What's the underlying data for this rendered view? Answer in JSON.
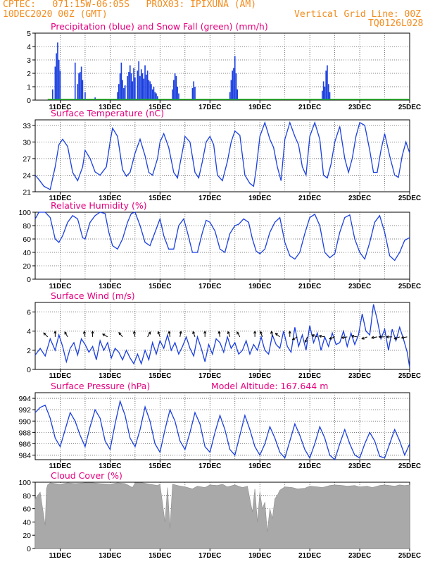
{
  "header": {
    "line1": "CPTEC:   071:15W-06:05S   PROX03: IPIXUNA (AM)",
    "line2": "10DEC2020 00Z (GMT)",
    "right1": "Vertical Grid Line: 00Z",
    "right2": "TQ0126L028"
  },
  "x_ticks": [
    "11DEC",
    "13DEC",
    "15DEC",
    "17DEC",
    "19DEC",
    "21DEC",
    "23DEC",
    "25DEC"
  ],
  "colors": {
    "line": "#1a3fe0",
    "bar": "#1a3fe0",
    "snow": "#1bb21b",
    "cloud": "#a9a9a9",
    "title": "#e6007e",
    "header": "#f28c1e"
  },
  "chart_data": [
    {
      "type": "bar",
      "title": "Precipitation (blue) and Snow Fall (green) (mm/h)",
      "ylim": [
        0,
        5
      ],
      "yticks": [
        "0",
        "1",
        "2",
        "3",
        "4",
        "5"
      ],
      "series": [
        {
          "name": "Precipitation",
          "x_days": [
            10.7,
            10.8,
            10.85,
            10.9,
            10.95,
            11.0,
            11.6,
            11.7,
            11.75,
            11.8,
            11.85,
            11.9,
            12.0,
            12.4,
            13.3,
            13.35,
            13.4,
            13.45,
            13.5,
            13.55,
            13.6,
            13.7,
            13.75,
            13.8,
            13.85,
            13.9,
            13.95,
            14.0,
            14.1,
            14.15,
            14.2,
            14.25,
            14.3,
            14.35,
            14.4,
            14.45,
            14.5,
            14.55,
            14.6,
            14.65,
            14.7,
            14.75,
            14.8,
            14.85,
            14.9,
            15.5,
            15.55,
            15.6,
            15.65,
            15.7,
            15.75,
            16.3,
            16.35,
            16.4,
            17.8,
            17.85,
            17.9,
            17.95,
            18.0,
            18.05,
            18.1,
            21.5,
            21.55,
            21.6,
            21.65,
            21.7,
            21.75,
            21.8
          ],
          "values": [
            0.8,
            2.5,
            3.5,
            4.3,
            3.0,
            2.2,
            2.8,
            1.2,
            2.0,
            2.1,
            2.5,
            1.5,
            0.6,
            0.2,
            0.6,
            1.2,
            2.0,
            2.8,
            1.5,
            0.9,
            1.1,
            1.8,
            2.1,
            2.6,
            2.0,
            1.4,
            2.4,
            1.7,
            2.2,
            2.9,
            1.8,
            2.3,
            2.0,
            1.6,
            2.6,
            1.9,
            2.2,
            1.5,
            1.4,
            1.2,
            0.8,
            1.0,
            0.6,
            0.5,
            0.3,
            0.8,
            1.5,
            2.0,
            1.8,
            1.0,
            0.5,
            0.9,
            1.4,
            1.0,
            0.6,
            1.5,
            2.2,
            2.4,
            3.3,
            2.0,
            0.8,
            0.7,
            1.4,
            1.0,
            2.2,
            2.6,
            1.2,
            0.6
          ]
        },
        {
          "name": "Snow Fall",
          "x_days": [
            10.5,
            25.0
          ],
          "values": [
            0,
            0
          ]
        }
      ]
    },
    {
      "type": "line",
      "title": "Surface Temperature (nC)",
      "ylim": [
        21,
        34
      ],
      "yticks": [
        "21",
        "24",
        "27",
        "30",
        "33"
      ],
      "x_days": [
        10.0,
        10.15,
        10.35,
        10.6,
        10.8,
        10.95,
        11.1,
        11.3,
        11.5,
        11.7,
        11.9,
        12.0,
        12.2,
        12.4,
        12.6,
        12.85,
        13.0,
        13.1,
        13.3,
        13.5,
        13.65,
        13.8,
        14.0,
        14.2,
        14.4,
        14.55,
        14.7,
        14.9,
        15.0,
        15.15,
        15.35,
        15.55,
        15.7,
        15.8,
        15.95,
        16.0,
        16.2,
        16.4,
        16.55,
        16.7,
        16.85,
        17.0,
        17.15,
        17.3,
        17.5,
        17.7,
        17.85,
        18.0,
        18.2,
        18.4,
        18.6,
        18.75,
        18.85,
        19.0,
        19.2,
        19.4,
        19.55,
        19.7,
        19.85,
        20.0,
        20.2,
        20.4,
        20.55,
        20.7,
        20.85,
        21.0,
        21.2,
        21.4,
        21.55,
        21.7,
        21.85,
        22.0,
        22.2,
        22.4,
        22.55,
        22.7,
        22.85,
        23.0,
        23.2,
        23.4,
        23.55,
        23.7,
        23.85,
        24.0,
        24.2,
        24.4,
        24.55,
        24.7,
        24.85,
        25.0
      ],
      "values": [
        24,
        23.2,
        22,
        21.4,
        25.5,
        29.5,
        30.5,
        29.2,
        24.5,
        23,
        25.5,
        28.5,
        27,
        24.6,
        24,
        25.5,
        30,
        32.5,
        31,
        25,
        23.8,
        24.5,
        28,
        30.5,
        27.5,
        24.5,
        24,
        27,
        30,
        31.5,
        29,
        24.5,
        23.5,
        26,
        29.5,
        31,
        30,
        24.5,
        23.5,
        26.5,
        30,
        31,
        29.5,
        24,
        23,
        26.5,
        30,
        32,
        31.2,
        24,
        22.5,
        22,
        25,
        31,
        33.5,
        30.5,
        29,
        25.5,
        23,
        30.5,
        33.5,
        31,
        29.5,
        25.5,
        24,
        31,
        33.5,
        30.5,
        24,
        23.5,
        26,
        30,
        32.8,
        27,
        24.5,
        27,
        31,
        33.5,
        33,
        28.5,
        24.5,
        24.5,
        28.5,
        31.5,
        27.5,
        24,
        23.6,
        27.5,
        30,
        28
      ]
    },
    {
      "type": "line",
      "title": "Relative Humidity (%)",
      "ylim": [
        0,
        100
      ],
      "yticks": [
        "0",
        "20",
        "40",
        "60",
        "80",
        "100"
      ],
      "x_days": [
        10.0,
        10.15,
        10.4,
        10.6,
        10.8,
        10.95,
        11.1,
        11.3,
        11.5,
        11.7,
        11.9,
        12.0,
        12.2,
        12.4,
        12.6,
        12.8,
        12.95,
        13.1,
        13.3,
        13.5,
        13.7,
        13.85,
        14.0,
        14.2,
        14.4,
        14.6,
        14.8,
        15.0,
        15.15,
        15.35,
        15.55,
        15.75,
        15.95,
        16.1,
        16.3,
        16.5,
        16.7,
        16.85,
        17.0,
        17.2,
        17.4,
        17.6,
        17.8,
        18.0,
        18.15,
        18.35,
        18.55,
        18.7,
        18.85,
        19.0,
        19.2,
        19.4,
        19.6,
        19.8,
        20.0,
        20.2,
        20.4,
        20.6,
        20.8,
        21.0,
        21.2,
        21.4,
        21.6,
        21.8,
        22.0,
        22.2,
        22.4,
        22.6,
        22.8,
        23.0,
        23.2,
        23.4,
        23.6,
        23.8,
        24.0,
        24.2,
        24.4,
        24.6,
        24.8,
        25.0
      ],
      "values": [
        90,
        100,
        100,
        92,
        60,
        55,
        65,
        85,
        95,
        90,
        62,
        60,
        85,
        95,
        100,
        98,
        70,
        50,
        45,
        60,
        85,
        98,
        100,
        80,
        55,
        50,
        70,
        90,
        65,
        45,
        45,
        80,
        90,
        70,
        40,
        40,
        70,
        88,
        85,
        72,
        45,
        40,
        68,
        80,
        82,
        90,
        85,
        60,
        42,
        38,
        45,
        70,
        85,
        92,
        55,
        35,
        30,
        40,
        68,
        92,
        97,
        80,
        40,
        32,
        38,
        70,
        92,
        96,
        60,
        40,
        30,
        55,
        85,
        95,
        70,
        35,
        28,
        40,
        58,
        62
      ]
    },
    {
      "type": "line",
      "title": "Surface Wind (m/s)",
      "ylim": [
        0,
        7
      ],
      "yticks": [
        "0",
        "2",
        "4",
        "6"
      ],
      "x_days": [
        10.0,
        10.2,
        10.4,
        10.6,
        10.8,
        10.95,
        11.1,
        11.25,
        11.4,
        11.55,
        11.7,
        11.85,
        12.0,
        12.15,
        12.3,
        12.45,
        12.6,
        12.75,
        12.9,
        13.05,
        13.2,
        13.35,
        13.5,
        13.65,
        13.8,
        13.95,
        14.1,
        14.25,
        14.4,
        14.55,
        14.7,
        14.85,
        15.0,
        15.15,
        15.3,
        15.45,
        15.6,
        15.75,
        15.9,
        16.05,
        16.2,
        16.35,
        16.5,
        16.65,
        16.8,
        16.95,
        17.1,
        17.25,
        17.4,
        17.55,
        17.7,
        17.85,
        18.0,
        18.15,
        18.3,
        18.45,
        18.6,
        18.75,
        18.9,
        19.05,
        19.2,
        19.35,
        19.5,
        19.65,
        19.8,
        19.95,
        20.1,
        20.25,
        20.4,
        20.55,
        20.7,
        20.85,
        21.0,
        21.15,
        21.3,
        21.45,
        21.6,
        21.75,
        21.9,
        22.05,
        22.2,
        22.35,
        22.5,
        22.65,
        22.8,
        22.95,
        23.1,
        23.25,
        23.4,
        23.55,
        23.7,
        23.85,
        24.0,
        24.15,
        24.3,
        24.45,
        24.6,
        24.75,
        24.9,
        25.0
      ],
      "values": [
        1.5,
        2.2,
        1.4,
        3.2,
        2.0,
        3.6,
        2.4,
        0.8,
        2.2,
        2.8,
        1.5,
        3.2,
        2.6,
        1.8,
        2.4,
        1.0,
        3.0,
        2.0,
        2.8,
        1.2,
        2.2,
        1.8,
        1.0,
        2.0,
        1.2,
        0.6,
        1.6,
        0.6,
        2.0,
        1.0,
        2.8,
        1.6,
        3.0,
        2.2,
        3.6,
        2.0,
        2.8,
        1.6,
        2.4,
        3.4,
        2.2,
        1.4,
        3.4,
        2.2,
        0.8,
        2.6,
        1.6,
        3.2,
        2.8,
        1.8,
        3.4,
        2.2,
        2.8,
        1.6,
        2.0,
        3.0,
        1.6,
        2.6,
        2.0,
        3.4,
        2.0,
        1.6,
        3.6,
        2.6,
        2.2,
        4.0,
        2.4,
        1.8,
        4.4,
        2.4,
        3.6,
        2.0,
        4.6,
        2.8,
        3.8,
        2.0,
        3.4,
        2.4,
        3.8,
        2.6,
        2.8,
        4.0,
        2.4,
        3.8,
        2.6,
        3.6,
        5.8,
        4.0,
        3.6,
        6.8,
        5.2,
        3.2,
        4.2,
        2.0,
        4.2,
        3.0,
        4.4,
        3.2,
        1.8,
        0.2
      ],
      "arrows_x_days": [
        10.5,
        10.8,
        11.3,
        12.0,
        12.3,
        12.9,
        13.5,
        14.0,
        14.5,
        15.0,
        15.4,
        15.8,
        16.4,
        16.8,
        17.4,
        17.8,
        18.2,
        18.8,
        19.1,
        19.5,
        19.8,
        20.2,
        20.5,
        20.9,
        21.3,
        21.6,
        22.0,
        22.5,
        22.9,
        23.3,
        23.7,
        24.0,
        24.3,
        24.6,
        24.9
      ],
      "arrows_deg": [
        135,
        90,
        120,
        100,
        90,
        150,
        130,
        100,
        60,
        110,
        100,
        80,
        110,
        90,
        100,
        110,
        120,
        90,
        110,
        100,
        140,
        90,
        210,
        250,
        160,
        170,
        200,
        190,
        170,
        200,
        190,
        180,
        180,
        200,
        190
      ]
    },
    {
      "type": "line",
      "title": "Surface Pressure (hPa)",
      "model_altitude": "Model Altitude: 167.644 m",
      "ylim": [
        983.2,
        995
      ],
      "yticks": [
        "984",
        "986",
        "988",
        "990",
        "992",
        "994"
      ],
      "x_days": [
        10.0,
        10.2,
        10.4,
        10.6,
        10.8,
        11.0,
        11.2,
        11.4,
        11.6,
        11.8,
        12.0,
        12.2,
        12.4,
        12.6,
        12.8,
        13.0,
        13.2,
        13.4,
        13.6,
        13.8,
        14.0,
        14.2,
        14.4,
        14.6,
        14.8,
        15.0,
        15.2,
        15.4,
        15.6,
        15.8,
        16.0,
        16.2,
        16.4,
        16.6,
        16.8,
        17.0,
        17.2,
        17.4,
        17.6,
        17.8,
        18.0,
        18.2,
        18.4,
        18.6,
        18.8,
        19.0,
        19.2,
        19.4,
        19.6,
        19.8,
        20.0,
        20.2,
        20.4,
        20.6,
        20.8,
        21.0,
        21.2,
        21.4,
        21.6,
        21.8,
        22.0,
        22.2,
        22.4,
        22.6,
        22.8,
        23.0,
        23.2,
        23.4,
        23.6,
        23.8,
        24.0,
        24.2,
        24.4,
        24.6,
        24.8,
        25.0
      ],
      "values": [
        991.5,
        992.4,
        992.8,
        990.5,
        987.0,
        985.5,
        988.5,
        991.5,
        990.0,
        987.5,
        985.5,
        989.0,
        992.0,
        990.5,
        986.5,
        985.0,
        989.5,
        993.5,
        991.0,
        987.0,
        985.5,
        988.5,
        992.5,
        990.0,
        986.0,
        984.5,
        988.5,
        992.0,
        990.0,
        986.5,
        985.0,
        988.0,
        991.5,
        989.5,
        985.5,
        984.5,
        988.0,
        991.0,
        988.5,
        985.0,
        984.0,
        987.5,
        991.0,
        988.5,
        985.5,
        984.0,
        986.0,
        989.0,
        987.0,
        984.5,
        983.5,
        986.5,
        989.5,
        987.5,
        985.0,
        983.5,
        986.0,
        989.0,
        987.0,
        984.0,
        983.0,
        986.0,
        988.5,
        986.0,
        984.0,
        983.5,
        986.0,
        988.0,
        986.5,
        983.8,
        983.5,
        986.0,
        988.5,
        986.5,
        984.0,
        986.0
      ]
    },
    {
      "type": "area",
      "title": "Cloud Cover (%)",
      "ylim": [
        0,
        100
      ],
      "yticks": [
        "0",
        "20",
        "40",
        "60",
        "80",
        "100"
      ],
      "x_days": [
        10.0,
        10.2,
        10.3,
        10.4,
        10.45,
        10.5,
        10.6,
        10.8,
        11.0,
        11.3,
        11.6,
        12.0,
        12.3,
        12.6,
        13.0,
        13.3,
        13.6,
        13.9,
        14.0,
        14.3,
        14.6,
        14.9,
        15.0,
        15.2,
        15.3,
        15.4,
        15.5,
        15.7,
        16.0,
        16.3,
        16.5,
        16.8,
        17.0,
        17.3,
        17.5,
        17.7,
        18.0,
        18.3,
        18.5,
        18.7,
        18.8,
        18.9,
        19.0,
        19.1,
        19.2,
        19.3,
        19.4,
        19.5,
        19.6,
        19.7,
        19.8,
        20.0,
        20.3,
        20.5,
        20.8,
        21.0,
        21.3,
        21.5,
        21.8,
        22.0,
        22.3,
        22.5,
        22.8,
        23.0,
        23.3,
        23.5,
        23.8,
        24.0,
        24.2,
        24.4,
        24.6,
        24.8,
        25.0
      ],
      "values": [
        75,
        85,
        60,
        35,
        90,
        96,
        99,
        98,
        97,
        99,
        98,
        99,
        99,
        98,
        97,
        99,
        98,
        92,
        99,
        99,
        97,
        95,
        97,
        40,
        92,
        30,
        97,
        95,
        93,
        90,
        94,
        92,
        96,
        95,
        97,
        93,
        96,
        92,
        94,
        55,
        90,
        40,
        85,
        60,
        70,
        25,
        60,
        45,
        75,
        80,
        88,
        93,
        92,
        90,
        91,
        94,
        93,
        92,
        95,
        96,
        95,
        94,
        95,
        93,
        94,
        92,
        95,
        96,
        95,
        94,
        96,
        95,
        96
      ]
    }
  ]
}
